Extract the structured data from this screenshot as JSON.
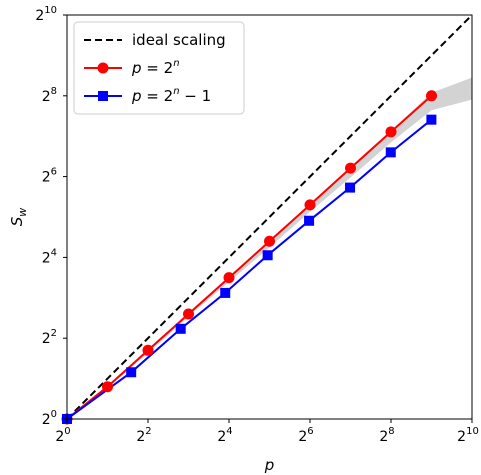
{
  "chart_data": {
    "type": "line",
    "xlabel": "p",
    "ylabel": "S_w",
    "x_scale": "log2",
    "y_scale": "log2",
    "xlim": [
      1,
      1024
    ],
    "ylim": [
      1,
      1024
    ],
    "x_ticks": [
      {
        "base": "2",
        "exp": "0"
      },
      {
        "base": "2",
        "exp": "2"
      },
      {
        "base": "2",
        "exp": "4"
      },
      {
        "base": "2",
        "exp": "6"
      },
      {
        "base": "2",
        "exp": "8"
      },
      {
        "base": "2",
        "exp": "10"
      }
    ],
    "y_ticks": [
      {
        "base": "2",
        "exp": "0"
      },
      {
        "base": "2",
        "exp": "2"
      },
      {
        "base": "2",
        "exp": "4"
      },
      {
        "base": "2",
        "exp": "6"
      },
      {
        "base": "2",
        "exp": "8"
      },
      {
        "base": "2",
        "exp": "10"
      }
    ],
    "grid": false,
    "legend_position": "top-left",
    "series": [
      {
        "name": "ideal scaling",
        "color": "#000000",
        "style": "dashed",
        "marker": "none",
        "x": [
          1,
          1024
        ],
        "y": [
          1,
          1024
        ]
      },
      {
        "name": "p = 2^n",
        "color": "#ff0000",
        "style": "solid",
        "marker": "circle",
        "x": [
          1,
          2,
          4,
          8,
          16,
          32,
          64,
          128,
          256,
          512
        ],
        "y": [
          1,
          1.74,
          3.25,
          6.06,
          11.3,
          21.1,
          39.4,
          74,
          138,
          256
        ]
      },
      {
        "name": "p = 2^n − 1",
        "color": "#0000ff",
        "style": "solid",
        "marker": "square",
        "x": [
          1,
          3,
          7,
          15,
          31,
          63,
          127,
          255,
          511
        ],
        "y": [
          1,
          2.23,
          4.7,
          8.7,
          16.6,
          30,
          53,
          97,
          170
        ]
      }
    ],
    "band": {
      "color": "#d3d3d3",
      "x": [
        1,
        2,
        4,
        8,
        16,
        32,
        64,
        128,
        256,
        512,
        1024
      ],
      "upper": [
        1,
        1.75,
        3.3,
        6.2,
        11.5,
        21.5,
        40,
        75,
        140,
        270,
        350
      ],
      "lower": [
        1,
        1.7,
        3.1,
        5.8,
        10.5,
        19,
        35,
        63,
        115,
        200,
        240
      ]
    }
  }
}
